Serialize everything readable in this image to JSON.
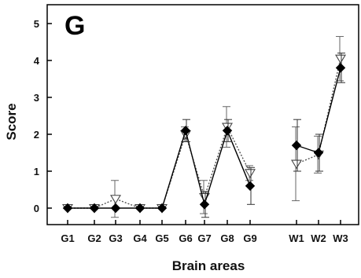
{
  "chart_data": {
    "type": "line",
    "panel_label": "G",
    "xlabel": "Brain areas",
    "ylabel": "Score",
    "ylim": [
      0,
      5
    ],
    "yticks": [
      0,
      1,
      2,
      3,
      4,
      5
    ],
    "categories": [
      "G1",
      "G2",
      "G3",
      "G4",
      "G5",
      "G6",
      "G7",
      "G8",
      "G9",
      "W1",
      "W2",
      "W3"
    ],
    "groups": [
      [
        "G1",
        "G2",
        "G3",
        "G4",
        "G5",
        "G6",
        "G7",
        "G8",
        "G9"
      ],
      [
        "W1",
        "W2",
        "W3"
      ]
    ],
    "grid": false,
    "legend": "none",
    "series": [
      {
        "marker": "diamond-filled",
        "line_style": "solid",
        "color": "#000000",
        "values": [
          0,
          0,
          0,
          0,
          0,
          2.1,
          0.1,
          2.1,
          0.6,
          1.7,
          1.5,
          3.8
        ],
        "errors": [
          0,
          0,
          0,
          0,
          0,
          0.3,
          0.35,
          0.3,
          0.5,
          0.7,
          0.5,
          0.4
        ]
      },
      {
        "marker": "triangle-down-open",
        "line_style": "dotted",
        "color": "#555555",
        "values": [
          0,
          0,
          0.25,
          0,
          0,
          2.0,
          0.3,
          2.2,
          0.95,
          1.2,
          1.45,
          4.05
        ],
        "errors": [
          0,
          0,
          0.5,
          0,
          0,
          0.2,
          0.45,
          0.55,
          0.2,
          1.0,
          0.5,
          0.6
        ]
      }
    ]
  }
}
